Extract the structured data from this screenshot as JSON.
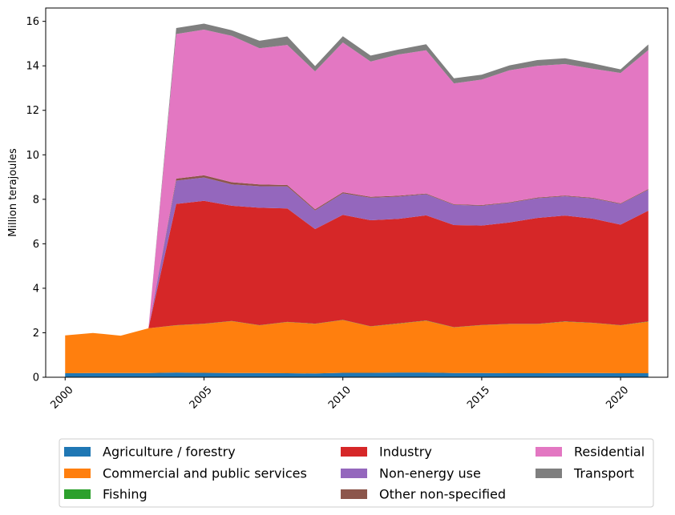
{
  "chart_data": {
    "type": "area",
    "stacked": true,
    "title": "",
    "xlabel": "",
    "ylabel": "Million terajoules",
    "xlim": [
      1999.3,
      2021.7
    ],
    "ylim": [
      0,
      16.6
    ],
    "xticks": [
      2000,
      2005,
      2010,
      2015,
      2020
    ],
    "yticks": [
      0,
      2,
      4,
      6,
      8,
      10,
      12,
      14,
      16
    ],
    "grid": false,
    "legend": {
      "placement": "bottom-center",
      "columns": 3
    },
    "x": [
      2000,
      2001,
      2002,
      2003,
      2004,
      2005,
      2006,
      2007,
      2008,
      2009,
      2010,
      2011,
      2012,
      2013,
      2014,
      2015,
      2016,
      2017,
      2018,
      2019,
      2020,
      2021
    ],
    "series": [
      {
        "name": "Agriculture / forestry",
        "color": "#1f77b4",
        "values": [
          0.18,
          0.19,
          0.19,
          0.19,
          0.21,
          0.2,
          0.19,
          0.19,
          0.18,
          0.17,
          0.2,
          0.2,
          0.21,
          0.21,
          0.19,
          0.19,
          0.18,
          0.18,
          0.19,
          0.19,
          0.18,
          0.18
        ]
      },
      {
        "name": "Commercial and public services",
        "color": "#ff7f0e",
        "values": [
          1.7,
          1.8,
          1.68,
          2.01,
          2.12,
          2.2,
          2.33,
          2.14,
          2.3,
          2.23,
          2.37,
          2.08,
          2.2,
          2.33,
          2.05,
          2.15,
          2.21,
          2.21,
          2.31,
          2.25,
          2.15,
          2.32
        ]
      },
      {
        "name": "Fishing",
        "color": "#2ca02c",
        "values": [
          0,
          0,
          0,
          0,
          0.01,
          0.01,
          0.01,
          0.01,
          0.01,
          0.01,
          0.01,
          0.01,
          0.01,
          0.01,
          0.01,
          0.01,
          0.01,
          0.01,
          0.01,
          0.01,
          0.01,
          0.01
        ]
      },
      {
        "name": "Industry",
        "color": "#d62728",
        "values": [
          0,
          0,
          0,
          0,
          5.45,
          5.52,
          5.18,
          5.28,
          5.1,
          4.25,
          4.72,
          4.77,
          4.7,
          4.73,
          4.59,
          4.47,
          4.56,
          4.76,
          4.76,
          4.68,
          4.52,
          4.98
        ]
      },
      {
        "name": "Non-energy use",
        "color": "#9467bd",
        "values": [
          0,
          0,
          0,
          0,
          1.05,
          1.05,
          0.96,
          0.97,
          0.99,
          0.84,
          0.97,
          1.01,
          1.0,
          0.95,
          0.91,
          0.89,
          0.88,
          0.89,
          0.87,
          0.91,
          0.93,
          0.94
        ]
      },
      {
        "name": "Other non-specified",
        "color": "#8c564b",
        "values": [
          0,
          0,
          0,
          0,
          0.09,
          0.1,
          0.1,
          0.08,
          0.06,
          0.05,
          0.05,
          0.04,
          0.04,
          0.03,
          0.03,
          0.03,
          0.03,
          0.03,
          0.03,
          0.03,
          0.03,
          0.03
        ]
      },
      {
        "name": "Residential",
        "color": "#e377c2",
        "values": [
          0,
          0,
          0,
          0,
          6.5,
          6.55,
          6.58,
          6.12,
          6.3,
          6.2,
          6.73,
          6.08,
          6.35,
          6.44,
          5.43,
          5.64,
          5.93,
          5.92,
          5.91,
          5.8,
          5.86,
          6.25
        ]
      },
      {
        "name": "Transport",
        "color": "#7f7f7f",
        "values": [
          0,
          0,
          0,
          0,
          0.27,
          0.27,
          0.25,
          0.34,
          0.38,
          0.24,
          0.28,
          0.27,
          0.22,
          0.27,
          0.23,
          0.22,
          0.22,
          0.26,
          0.26,
          0.24,
          0.16,
          0.25
        ]
      }
    ]
  }
}
